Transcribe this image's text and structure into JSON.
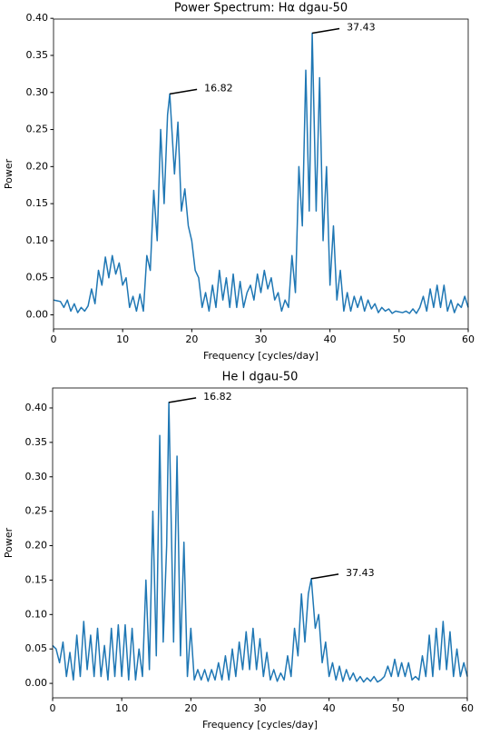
{
  "chart_data": [
    {
      "type": "line",
      "title": "Power Spectrum: Hα dgau-50",
      "xlabel": "Frequency [cycles/day]",
      "ylabel": "Power",
      "xlim": [
        0,
        60
      ],
      "xticks": [
        0,
        10,
        20,
        30,
        40,
        50,
        60
      ],
      "ylim": [
        -0.019,
        0.399
      ],
      "yticks": [
        {
          "value": 0,
          "label": "0.00"
        },
        {
          "value": 0.05,
          "label": "0.05"
        },
        {
          "value": 0.1,
          "label": "0.10"
        },
        {
          "value": 0.15,
          "label": "0.15"
        },
        {
          "value": 0.2,
          "label": "0.20"
        },
        {
          "value": 0.25,
          "label": "0.25"
        },
        {
          "value": 0.3,
          "label": "0.30"
        },
        {
          "value": 0.35,
          "label": "0.35"
        },
        {
          "value": 0.4,
          "label": "0.40"
        }
      ],
      "x": [
        0,
        0.5,
        1,
        1.5,
        2,
        2.5,
        3,
        3.5,
        4,
        4.5,
        5,
        5.5,
        6,
        6.5,
        7,
        7.5,
        8,
        8.5,
        9,
        9.5,
        10,
        10.5,
        11,
        11.5,
        12,
        12.5,
        13,
        13.5,
        14,
        14.5,
        15,
        15.5,
        16,
        16.5,
        16.82,
        17.5,
        18,
        18.5,
        19,
        19.5,
        20,
        20.5,
        21,
        21.5,
        22,
        22.5,
        23,
        23.5,
        24,
        24.5,
        25,
        25.5,
        26,
        26.5,
        27,
        27.5,
        28,
        28.5,
        29,
        29.5,
        30,
        30.5,
        31,
        31.5,
        32,
        32.5,
        33,
        33.5,
        34,
        34.5,
        35,
        35.5,
        36,
        36.5,
        37,
        37.43,
        38,
        38.5,
        39,
        39.5,
        40,
        40.5,
        41,
        41.5,
        42,
        42.5,
        43,
        43.5,
        44,
        44.5,
        45,
        45.5,
        46,
        46.5,
        47,
        47.5,
        48,
        48.5,
        49,
        49.5,
        50,
        50.5,
        51,
        51.5,
        52,
        52.5,
        53,
        53.5,
        54,
        54.5,
        55,
        55.5,
        56,
        56.5,
        57,
        57.5,
        58,
        58.5,
        59,
        59.5,
        60
      ],
      "series": [
        {
          "color": "#1f77b4",
          "values": [
            0.02,
            0.019,
            0.018,
            0.01,
            0.02,
            0.005,
            0.015,
            0.003,
            0.01,
            0.005,
            0.012,
            0.035,
            0.015,
            0.06,
            0.04,
            0.078,
            0.05,
            0.08,
            0.055,
            0.07,
            0.04,
            0.05,
            0.01,
            0.025,
            0.005,
            0.028,
            0.005,
            0.08,
            0.06,
            0.168,
            0.1,
            0.25,
            0.15,
            0.27,
            0.298,
            0.19,
            0.26,
            0.14,
            0.17,
            0.12,
            0.1,
            0.06,
            0.05,
            0.01,
            0.03,
            0.005,
            0.04,
            0.01,
            0.06,
            0.02,
            0.05,
            0.01,
            0.055,
            0.01,
            0.045,
            0.01,
            0.03,
            0.04,
            0.02,
            0.055,
            0.03,
            0.06,
            0.035,
            0.05,
            0.02,
            0.03,
            0.005,
            0.02,
            0.01,
            0.08,
            0.03,
            0.2,
            0.12,
            0.33,
            0.14,
            0.38,
            0.14,
            0.32,
            0.1,
            0.2,
            0.04,
            0.12,
            0.02,
            0.06,
            0.005,
            0.03,
            0.005,
            0.025,
            0.01,
            0.025,
            0.005,
            0.02,
            0.008,
            0.015,
            0.003,
            0.01,
            0.005,
            0.008,
            0.002,
            0.005,
            0.004,
            0.003,
            0.005,
            0.002,
            0.008,
            0.002,
            0.01,
            0.025,
            0.005,
            0.035,
            0.01,
            0.04,
            0.01,
            0.04,
            0.005,
            0.02,
            0.003,
            0.015,
            0.01,
            0.025,
            0.01
          ]
        }
      ],
      "annotations": [
        {
          "x": 16.82,
          "y": 0.298
        },
        {
          "x": 37.43,
          "y": 0.38
        }
      ]
    },
    {
      "type": "line",
      "title": "He I dgau-50",
      "xlabel": "Frequency [cycles/day]",
      "ylabel": "Power",
      "xlim": [
        0,
        60
      ],
      "xticks": [
        0,
        10,
        20,
        30,
        40,
        50,
        60
      ],
      "ylim": [
        -0.021,
        0.429
      ],
      "yticks": [
        {
          "value": 0,
          "label": "0.00"
        },
        {
          "value": 0.05,
          "label": "0.05"
        },
        {
          "value": 0.1,
          "label": "0.10"
        },
        {
          "value": 0.15,
          "label": "0.15"
        },
        {
          "value": 0.2,
          "label": "0.20"
        },
        {
          "value": 0.25,
          "label": "0.25"
        },
        {
          "value": 0.3,
          "label": "0.30"
        },
        {
          "value": 0.35,
          "label": "0.35"
        },
        {
          "value": 0.4,
          "label": "0.40"
        }
      ],
      "x": [
        0,
        0.5,
        1,
        1.5,
        2,
        2.5,
        3,
        3.5,
        4,
        4.5,
        5,
        5.5,
        6,
        6.5,
        7,
        7.5,
        8,
        8.5,
        9,
        9.5,
        10,
        10.5,
        11,
        11.5,
        12,
        12.5,
        13,
        13.5,
        14,
        14.5,
        15,
        15.5,
        16,
        16.5,
        16.82,
        17.5,
        18,
        18.5,
        19,
        19.5,
        20,
        20.5,
        21,
        21.5,
        22,
        22.5,
        23,
        23.5,
        24,
        24.5,
        25,
        25.5,
        26,
        26.5,
        27,
        27.5,
        28,
        28.5,
        29,
        29.5,
        30,
        30.5,
        31,
        31.5,
        32,
        32.5,
        33,
        33.5,
        34,
        34.5,
        35,
        35.5,
        36,
        36.5,
        37,
        37.43,
        38,
        38.5,
        39,
        39.5,
        40,
        40.5,
        41,
        41.5,
        42,
        42.5,
        43,
        43.5,
        44,
        44.5,
        45,
        45.5,
        46,
        46.5,
        47,
        47.5,
        48,
        48.5,
        49,
        49.5,
        50,
        50.5,
        51,
        51.5,
        52,
        52.5,
        53,
        53.5,
        54,
        54.5,
        55,
        55.5,
        56,
        56.5,
        57,
        57.5,
        58,
        58.5,
        59,
        59.5,
        60
      ],
      "series": [
        {
          "color": "#1f77b4",
          "values": [
            0.055,
            0.05,
            0.03,
            0.06,
            0.01,
            0.045,
            0.005,
            0.07,
            0.01,
            0.09,
            0.02,
            0.07,
            0.01,
            0.08,
            0.01,
            0.055,
            0.005,
            0.08,
            0.01,
            0.085,
            0.01,
            0.085,
            0.005,
            0.08,
            0.005,
            0.05,
            0.01,
            0.15,
            0.02,
            0.25,
            0.04,
            0.36,
            0.06,
            0.2,
            0.408,
            0.06,
            0.33,
            0.04,
            0.205,
            0.01,
            0.08,
            0.005,
            0.02,
            0.005,
            0.02,
            0.003,
            0.02,
            0.005,
            0.03,
            0.005,
            0.04,
            0.005,
            0.05,
            0.01,
            0.06,
            0.02,
            0.075,
            0.02,
            0.08,
            0.02,
            0.065,
            0.01,
            0.045,
            0.005,
            0.02,
            0.003,
            0.015,
            0.005,
            0.04,
            0.01,
            0.08,
            0.04,
            0.13,
            0.06,
            0.13,
            0.152,
            0.08,
            0.1,
            0.03,
            0.06,
            0.01,
            0.03,
            0.005,
            0.025,
            0.003,
            0.02,
            0.005,
            0.015,
            0.003,
            0.01,
            0.002,
            0.008,
            0.003,
            0.01,
            0.002,
            0.005,
            0.01,
            0.025,
            0.01,
            0.035,
            0.01,
            0.03,
            0.01,
            0.03,
            0.005,
            0.01,
            0.005,
            0.04,
            0.01,
            0.07,
            0.01,
            0.08,
            0.02,
            0.09,
            0.02,
            0.075,
            0.01,
            0.05,
            0.01,
            0.03,
            0.01
          ]
        }
      ],
      "annotations": [
        {
          "x": 16.82,
          "y": 0.408
        },
        {
          "x": 37.43,
          "y": 0.152
        }
      ]
    }
  ]
}
